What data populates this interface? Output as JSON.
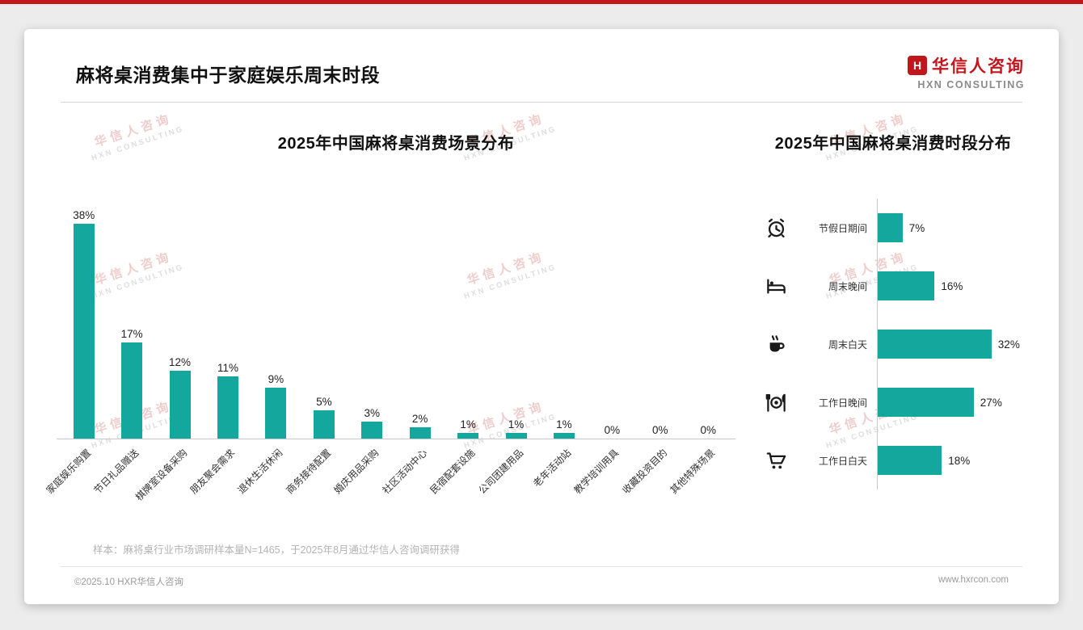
{
  "header": {
    "title": "麻将桌消费集中于家庭娱乐周末时段",
    "logo": {
      "cn": "华信人咨询",
      "en": "HXN CONSULTING",
      "mark": "H"
    }
  },
  "watermark": {
    "line1": "华信人咨询",
    "line2": "HXN CONSULTING"
  },
  "chart_data": [
    {
      "type": "bar",
      "orientation": "vertical",
      "title": "2025年中国麻将桌消费场景分布",
      "categories": [
        "家庭娱乐购置",
        "节日礼品赠送",
        "棋牌室设备采购",
        "朋友聚会需求",
        "退休生活休闲",
        "商务接待配置",
        "婚庆用品采购",
        "社区活动中心",
        "民宿配套设施",
        "公司团建用品",
        "老年活动站",
        "教学培训用具",
        "收藏投资目的",
        "其他特殊场景"
      ],
      "values": [
        38,
        17,
        12,
        11,
        9,
        5,
        3,
        2,
        1,
        1,
        1,
        0,
        0,
        0
      ],
      "unit": "%",
      "bar_color": "#13a79e",
      "ylim": [
        0,
        40
      ],
      "value_labels": true,
      "grid": false
    },
    {
      "type": "bar",
      "orientation": "horizontal",
      "title": "2025年中国麻将桌消费时段分布",
      "categories": [
        "节假日期间",
        "周末晚间",
        "周末白天",
        "工作日晚间",
        "工作日白天"
      ],
      "values": [
        7,
        16,
        32,
        27,
        18
      ],
      "icons": [
        "alarm-clock",
        "bed",
        "coffee",
        "dining",
        "cart"
      ],
      "unit": "%",
      "bar_color": "#13a79e",
      "xlim": [
        0,
        35
      ],
      "value_labels": true,
      "grid": false
    }
  ],
  "footnote": "样本：麻将桌行业市场调研样本量N=1465，于2025年8月通过华信人咨询调研获得",
  "footer": {
    "copyright": "©2025.10 HXR华信人咨询",
    "website": "www.hxrcon.com"
  },
  "colors": {
    "accent_red": "#c0161c",
    "bar_teal": "#13a79e"
  }
}
